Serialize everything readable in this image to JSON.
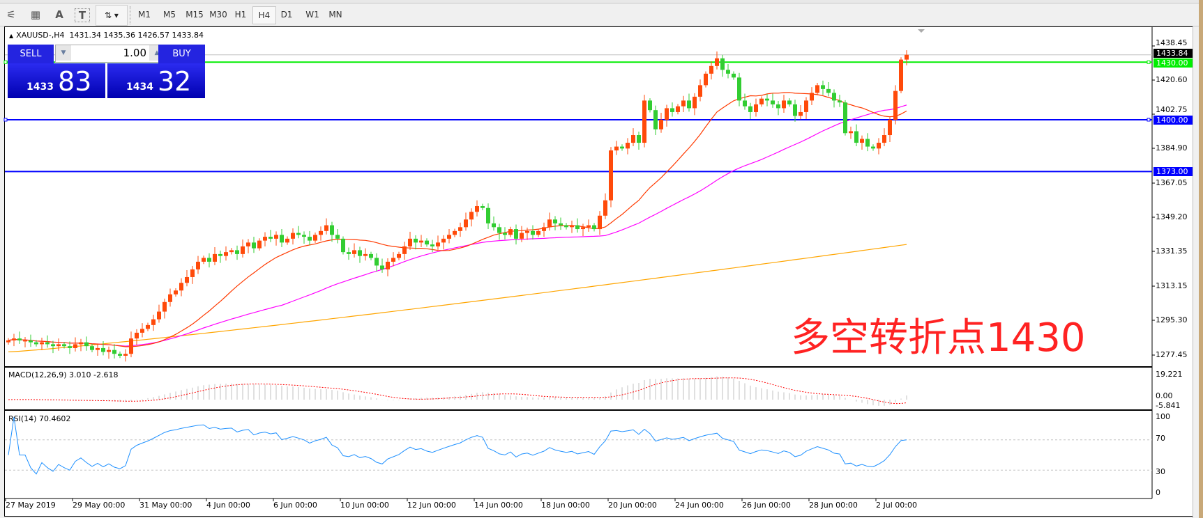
{
  "toolbar": {
    "icons": [
      "elliott-wave-icon",
      "fibonacci-icon",
      "text-icon",
      "text-label-icon"
    ],
    "icon_glyphs": [
      "⚟",
      "▦",
      "A",
      "T"
    ],
    "arrows_glyph": "⇅ ▾",
    "timeframes": [
      "M1",
      "M5",
      "M15",
      "M30",
      "H1",
      "H4",
      "D1",
      "W1",
      "MN"
    ],
    "active_timeframe": "H4"
  },
  "chart": {
    "info": {
      "symbol": "XAUUSD-,H4",
      "open": "1431.34",
      "high": "1435.36",
      "low": "1426.57",
      "close": "1433.84"
    },
    "trade_panel": {
      "sell_label": "SELL",
      "buy_label": "BUY",
      "volume": "1.00",
      "sell_price_small": "1433",
      "sell_price_big": "83",
      "buy_price_small": "1434",
      "buy_price_big": "32"
    },
    "price_ticks": [
      "1438.45",
      "1420.60",
      "1402.75",
      "1384.90",
      "1367.05",
      "1349.20",
      "1331.35",
      "1313.15",
      "1295.30",
      "1277.45"
    ],
    "current_price": "1433.84",
    "levels": [
      {
        "price": 1430.0,
        "label": "1430.00",
        "color": "#00ee00"
      },
      {
        "price": 1400.0,
        "label": "1400.00",
        "color": "#0000ff"
      },
      {
        "price": 1373.0,
        "label": "1373.00",
        "color": "#0000ff"
      }
    ],
    "annotation": "多空转折点1430",
    "colors": {
      "bull": "#ff4a0a",
      "bear": "#32cd32",
      "ma_fast": "#ff3a00",
      "ma_mid": "#ff00ff",
      "ma_slow": "#ffa500",
      "rsi": "#1e90ff",
      "macd_signal": "#ff0000",
      "macd_hist": "#c0c0c0"
    },
    "time_labels": [
      "27 May 2019",
      "29 May 00:00",
      "31 May 00:00",
      "4 Jun 00:00",
      "6 Jun 00:00",
      "10 Jun 00:00",
      "12 Jun 00:00",
      "14 Jun 00:00",
      "18 Jun 00:00",
      "20 Jun 00:00",
      "24 Jun 00:00",
      "26 Jun 00:00",
      "28 Jun 00:00",
      "2 Jul 00:00"
    ]
  },
  "chart_data": {
    "type": "candlestick",
    "symbol": "XAUUSD-",
    "timeframe": "H4",
    "ylim": [
      1277.45,
      1438.45
    ],
    "close": [
      1285,
      1286,
      1285,
      1285,
      1284,
      1283,
      1284,
      1283,
      1282,
      1283,
      1282,
      1281,
      1283,
      1284,
      1282,
      1280,
      1281,
      1279,
      1280,
      1278,
      1277,
      1278,
      1286,
      1289,
      1291,
      1293,
      1296,
      1300,
      1305,
      1309,
      1311,
      1315,
      1318,
      1322,
      1326,
      1328,
      1326,
      1330,
      1329,
      1331,
      1332,
      1330,
      1334,
      1336,
      1333,
      1337,
      1339,
      1338,
      1340,
      1336,
      1338,
      1341,
      1340,
      1339,
      1337,
      1340,
      1342,
      1345,
      1340,
      1338,
      1331,
      1330,
      1332,
      1329,
      1330,
      1328,
      1324,
      1322,
      1326,
      1328,
      1330,
      1334,
      1338,
      1336,
      1337,
      1335,
      1334,
      1336,
      1338,
      1340,
      1342,
      1344,
      1348,
      1352,
      1355,
      1354,
      1346,
      1344,
      1341,
      1340,
      1343,
      1338,
      1341,
      1342,
      1340,
      1342,
      1344,
      1348,
      1346,
      1345,
      1344,
      1345,
      1343,
      1344,
      1345,
      1343,
      1350,
      1358,
      1384,
      1386,
      1385,
      1388,
      1392,
      1388,
      1410,
      1405,
      1395,
      1400,
      1406,
      1404,
      1407,
      1410,
      1406,
      1412,
      1418,
      1424,
      1428,
      1432,
      1426,
      1424,
      1422,
      1410,
      1407,
      1404,
      1408,
      1411,
      1410,
      1408,
      1406,
      1410,
      1408,
      1402,
      1404,
      1410,
      1414,
      1418,
      1416,
      1414,
      1410,
      1409,
      1393,
      1394,
      1388,
      1390,
      1386,
      1385,
      1388,
      1392,
      1400,
      1415,
      1431.34,
      1433.84
    ],
    "ma_slow_range": [
      1279,
      1335
    ],
    "macd": {
      "label": "MACD(12,26,9) 3.010 -2.618",
      "ticks": [
        "19.221",
        "0.00",
        "-5.841"
      ]
    },
    "rsi": {
      "label": "RSI(14) 70.4602",
      "ticks": [
        "100",
        "70",
        "30",
        "0"
      ],
      "levels": [
        70,
        30
      ]
    }
  }
}
